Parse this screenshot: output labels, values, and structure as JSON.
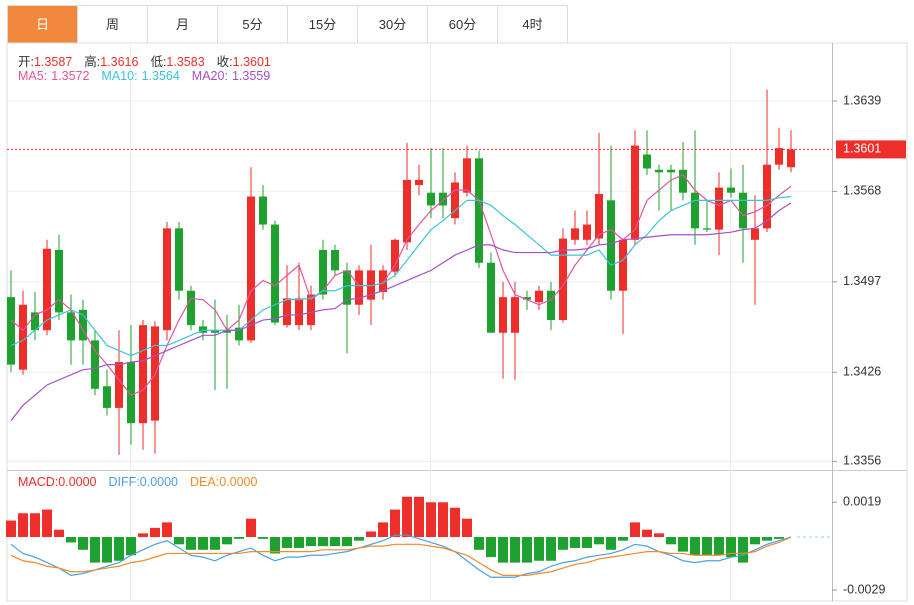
{
  "tabs": [
    "日",
    "周",
    "月",
    "5分",
    "15分",
    "30分",
    "60分",
    "4时"
  ],
  "active_tab": 0,
  "chart_data": [
    {
      "type": "candlestick",
      "ohlc_legend": [
        {
          "label": "开:",
          "value": 1.3587
        },
        {
          "label": "高:",
          "value": 1.3616
        },
        {
          "label": "低:",
          "value": 1.3583
        },
        {
          "label": "收:",
          "value": 1.3601
        }
      ],
      "up_color": "#ee2e2a",
      "down_color": "#1ea12e",
      "open": [
        1.3485,
        1.3428,
        1.3473,
        1.3459,
        1.3522,
        1.3473,
        1.3475,
        1.3451,
        1.3415,
        1.3398,
        1.3434,
        1.3386,
        1.3388,
        1.3459,
        1.3539,
        1.349,
        1.3462,
        1.3459,
        1.3459,
        1.3461,
        1.3451,
        1.3564,
        1.3542,
        1.3463,
        1.3463,
        1.3463,
        1.3522,
        1.3522,
        1.3506,
        1.3479,
        1.3483,
        1.3489,
        1.3505,
        1.3528,
        1.3573,
        1.3567,
        1.3567,
        1.3547,
        1.3567,
        1.3594,
        1.3512,
        1.3457,
        1.3457,
        1.3485,
        1.3481,
        1.349,
        1.3467,
        1.353,
        1.353,
        1.3531,
        1.3561,
        1.349,
        1.353,
        1.3597,
        1.3585,
        1.3585,
        1.3585,
        1.3567,
        1.3539,
        1.3538,
        1.3571,
        1.3567,
        1.353,
        1.3539,
        1.3589,
        1.3587
      ],
      "high": [
        1.3506,
        1.349,
        1.3489,
        1.353,
        1.3534,
        1.3487,
        1.3483,
        1.3459,
        1.3428,
        1.3459,
        1.3463,
        1.3467,
        1.3466,
        1.3544,
        1.3544,
        1.3494,
        1.3467,
        1.3483,
        1.3471,
        1.3479,
        1.3587,
        1.3573,
        1.3545,
        1.351,
        1.3512,
        1.3494,
        1.353,
        1.3526,
        1.3512,
        1.351,
        1.3526,
        1.351,
        1.3531,
        1.3606,
        1.3589,
        1.3602,
        1.3602,
        1.3583,
        1.3604,
        1.36,
        1.352,
        1.3497,
        1.3497,
        1.349,
        1.3494,
        1.3497,
        1.3539,
        1.3553,
        1.3553,
        1.3614,
        1.3604,
        1.3531,
        1.3616,
        1.3616,
        1.3589,
        1.3589,
        1.3607,
        1.3616,
        1.3561,
        1.3583,
        1.3586,
        1.3589,
        1.3565,
        1.3648,
        1.3618,
        1.3616
      ],
      "low": [
        1.3426,
        1.3424,
        1.3451,
        1.3455,
        1.3467,
        1.3432,
        1.3432,
        1.3408,
        1.3392,
        1.3361,
        1.3369,
        1.3365,
        1.3362,
        1.3451,
        1.3483,
        1.3459,
        1.3451,
        1.3412,
        1.3413,
        1.3447,
        1.3449,
        1.3538,
        1.3463,
        1.3461,
        1.3459,
        1.3459,
        1.3483,
        1.3502,
        1.3441,
        1.3471,
        1.3463,
        1.3483,
        1.3501,
        1.3522,
        1.3565,
        1.3547,
        1.3547,
        1.3542,
        1.3564,
        1.3508,
        1.3457,
        1.3421,
        1.342,
        1.3475,
        1.3475,
        1.3459,
        1.3465,
        1.3526,
        1.3526,
        1.3526,
        1.3483,
        1.3456,
        1.3526,
        1.3581,
        1.3553,
        1.3553,
        1.3561,
        1.3526,
        1.3536,
        1.3518,
        1.3563,
        1.3512,
        1.3479,
        1.3536,
        1.3585,
        1.3583
      ],
      "close": [
        1.3432,
        1.3479,
        1.3459,
        1.3523,
        1.3473,
        1.3451,
        1.3451,
        1.3413,
        1.3398,
        1.3434,
        1.3386,
        1.3463,
        1.3462,
        1.3539,
        1.349,
        1.3463,
        1.3457,
        1.3457,
        1.3457,
        1.3451,
        1.3564,
        1.3542,
        1.3465,
        1.3484,
        1.3484,
        1.3487,
        1.3487,
        1.3506,
        1.3479,
        1.3506,
        1.3506,
        1.3506,
        1.353,
        1.3577,
        1.3577,
        1.3557,
        1.3557,
        1.3575,
        1.3594,
        1.3512,
        1.3457,
        1.3485,
        1.3485,
        1.3483,
        1.349,
        1.3467,
        1.3531,
        1.3539,
        1.3542,
        1.3566,
        1.349,
        1.353,
        1.3604,
        1.3586,
        1.3583,
        1.3583,
        1.3567,
        1.3539,
        1.3538,
        1.3571,
        1.3567,
        1.3539,
        1.3539,
        1.3589,
        1.3602,
        1.3601
      ],
      "series": [
        {
          "name": "MA5:",
          "color": "#e2549d",
          "last": 1.3572,
          "values": [
            1.3467,
            1.3459,
            1.3471,
            1.3475,
            1.3483,
            1.3475,
            1.3459,
            1.3443,
            1.3432,
            1.342,
            1.3408,
            1.3412,
            1.3424,
            1.3447,
            1.3467,
            1.3484,
            1.3483,
            1.3475,
            1.3459,
            1.3467,
            1.349,
            1.3498,
            1.3494,
            1.3502,
            1.351,
            1.3483,
            1.349,
            1.3502,
            1.3506,
            1.3494,
            1.3494,
            1.3496,
            1.351,
            1.353,
            1.3542,
            1.3553,
            1.3561,
            1.3569,
            1.3569,
            1.3561,
            1.3534,
            1.3506,
            1.3487,
            1.3483,
            1.3479,
            1.3483,
            1.3494,
            1.351,
            1.3522,
            1.3534,
            1.3538,
            1.353,
            1.3538,
            1.3561,
            1.3569,
            1.3577,
            1.3581,
            1.3569,
            1.3561,
            1.3557,
            1.3561,
            1.3549,
            1.3552,
            1.3557,
            1.3565,
            1.3572
          ]
        },
        {
          "name": "MA10:",
          "color": "#3cc4d6",
          "last": 1.3564,
          "values": [
            1.3447,
            1.3451,
            1.3459,
            1.3467,
            1.3471,
            1.3475,
            1.3471,
            1.3459,
            1.3447,
            1.3443,
            1.3439,
            1.3443,
            1.3447,
            1.3447,
            1.3451,
            1.3455,
            1.3459,
            1.3459,
            1.3459,
            1.3459,
            1.3467,
            1.3475,
            1.3479,
            1.3483,
            1.3483,
            1.3484,
            1.349,
            1.349,
            1.3494,
            1.3494,
            1.3494,
            1.3496,
            1.3502,
            1.3514,
            1.3526,
            1.3538,
            1.3545,
            1.3553,
            1.3561,
            1.3561,
            1.3557,
            1.3549,
            1.3542,
            1.3534,
            1.3526,
            1.3518,
            1.3518,
            1.3518,
            1.3518,
            1.3522,
            1.351,
            1.3514,
            1.3526,
            1.3534,
            1.3545,
            1.3553,
            1.3557,
            1.3561,
            1.3561,
            1.3561,
            1.3561,
            1.3561,
            1.3561,
            1.3561,
            1.3563,
            1.3564
          ]
        },
        {
          "name": "MA20:",
          "color": "#a650c2",
          "last": 1.3559,
          "values": [
            1.3388,
            1.34,
            1.3408,
            1.3416,
            1.342,
            1.3424,
            1.3428,
            1.3429,
            1.3432,
            1.3432,
            1.3434,
            1.3435,
            1.3439,
            1.3443,
            1.3447,
            1.3451,
            1.3455,
            1.3455,
            1.3459,
            1.3459,
            1.3463,
            1.3467,
            1.3468,
            1.3471,
            1.3471,
            1.3473,
            1.3475,
            1.3476,
            1.3483,
            1.3484,
            1.3487,
            1.349,
            1.3494,
            1.3498,
            1.3502,
            1.3506,
            1.3512,
            1.3518,
            1.3522,
            1.3526,
            1.3526,
            1.3522,
            1.352,
            1.352,
            1.352,
            1.352,
            1.3522,
            1.3522,
            1.3523,
            1.3526,
            1.3527,
            1.353,
            1.3531,
            1.3532,
            1.3533,
            1.3534,
            1.3534,
            1.3534,
            1.3534,
            1.3535,
            1.3536,
            1.3538,
            1.3539,
            1.3545,
            1.3553,
            1.3559
          ]
        }
      ],
      "ylim": [
        1.335,
        1.3683
      ],
      "yticks": [
        1.3639,
        1.3568,
        1.3497,
        1.3426,
        1.3356
      ],
      "grid": true,
      "last_price_line": true
    },
    {
      "type": "macd",
      "histogram": {
        "name": "MACD:",
        "color": "#ee2e2a",
        "up_color": "#ee2e2a",
        "down_color": "#1ea12e",
        "last": {
          "value": 0,
          "label": "0.0000"
        },
        "values": [
          0.0009,
          0.0013,
          0.0013,
          0.0015,
          0.0004,
          -0.0003,
          -0.0007,
          -0.0014,
          -0.0014,
          -0.0013,
          -0.001,
          0.0002,
          0.0005,
          0.0008,
          -0.0004,
          -0.0007,
          -0.0007,
          -0.0007,
          -0.0004,
          -0.0001,
          0.001,
          -0.0001,
          -0.0009,
          -0.0006,
          -0.0006,
          -0.0005,
          -0.0005,
          -0.0005,
          -0.0005,
          -0.0002,
          0.0003,
          0.0008,
          0.0015,
          0.0022,
          0.0022,
          0.0019,
          0.0019,
          0.0016,
          0.001,
          -0.0007,
          -0.0011,
          -0.0014,
          -0.0014,
          -0.0014,
          -0.0013,
          -0.0013,
          -0.0007,
          -0.0006,
          -0.0006,
          -0.0004,
          -0.0007,
          -0.0002,
          0.0008,
          0.0004,
          0.0002,
          -0.0004,
          -0.0008,
          -0.001,
          -0.001,
          -0.001,
          -0.0011,
          -0.0014,
          -0.0004,
          -0.0002,
          -0.0001,
          0
        ]
      },
      "series": [
        {
          "name": "DIFF:",
          "color": "#4c9fe2",
          "last": {
            "value": 0,
            "label": "0.0000"
          },
          "values": [
            -0.0004,
            -0.0009,
            -0.0011,
            -0.0014,
            -0.0017,
            -0.0021,
            -0.002,
            -0.0018,
            -0.0016,
            -0.0014,
            -0.001,
            -0.0007,
            -0.0004,
            -0.0002,
            -0.0006,
            -0.001,
            -0.0011,
            -0.0013,
            -0.001,
            -0.0008,
            -0.0006,
            -0.001,
            -0.0013,
            -0.0011,
            -0.0011,
            -0.001,
            -0.001,
            -0.0009,
            -0.0008,
            -0.0006,
            -0.0004,
            -0.0002,
            0.0001,
            0.0001,
            -0.0001,
            -0.0003,
            -0.0005,
            -0.0008,
            -0.0013,
            -0.0018,
            -0.0022,
            -0.0022,
            -0.0022,
            -0.002,
            -0.0019,
            -0.0016,
            -0.0014,
            -0.0013,
            -0.0011,
            -0.001,
            -0.0009,
            -0.0007,
            -0.0004,
            -0.0005,
            -0.0008,
            -0.001,
            -0.0013,
            -0.0014,
            -0.0013,
            -0.0013,
            -0.0011,
            -0.001,
            -0.0007,
            -0.0004,
            -0.0002,
            0
          ]
        },
        {
          "name": "DEA:",
          "color": "#f08a2a",
          "last": {
            "value": 0,
            "label": "0.0000"
          },
          "values": [
            -0.001,
            -0.0013,
            -0.0014,
            -0.0016,
            -0.0017,
            -0.0019,
            -0.0019,
            -0.0018,
            -0.0017,
            -0.0016,
            -0.0014,
            -0.0013,
            -0.0011,
            -0.0009,
            -0.0009,
            -0.0009,
            -0.0009,
            -0.0009,
            -0.0009,
            -0.0009,
            -0.0008,
            -0.0008,
            -0.0008,
            -0.0008,
            -0.0008,
            -0.0008,
            -0.0007,
            -0.0007,
            -0.0007,
            -0.0006,
            -0.0005,
            -0.0005,
            -0.0004,
            -0.0004,
            -0.0004,
            -0.0005,
            -0.0006,
            -0.0008,
            -0.001,
            -0.0014,
            -0.0018,
            -0.0021,
            -0.0021,
            -0.0021,
            -0.002,
            -0.0019,
            -0.0017,
            -0.0015,
            -0.0014,
            -0.0012,
            -0.0011,
            -0.001,
            -0.0009,
            -0.0008,
            -0.0008,
            -0.0009,
            -0.0009,
            -0.001,
            -0.001,
            -0.001,
            -0.0009,
            -0.0009,
            -0.0008,
            -0.0005,
            -0.0003,
            0
          ]
        }
      ],
      "ylim": [
        -0.0035,
        0.0035
      ],
      "yticks": [
        0.0019,
        -0.0029
      ]
    }
  ]
}
